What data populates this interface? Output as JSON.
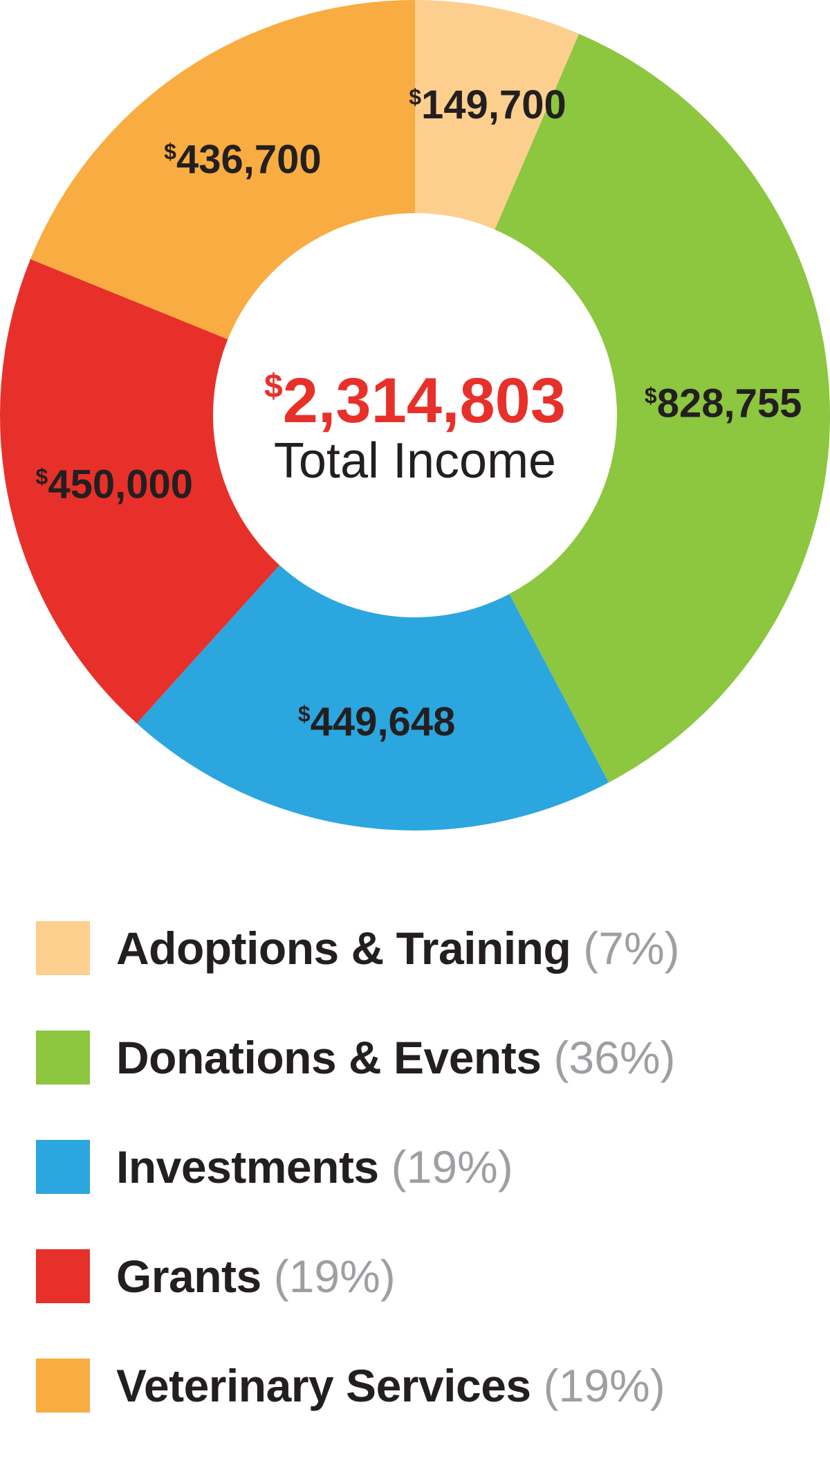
{
  "chart_data": {
    "type": "pie",
    "categories": [
      "Adoptions & Training",
      "Donations & Events",
      "Investments",
      "Grants",
      "Veterinary Services"
    ],
    "values": [
      149700,
      828755,
      449648,
      450000,
      436700
    ],
    "value_labels": [
      "149,700",
      "828,755",
      "449,648",
      "450,000",
      "436,700"
    ],
    "currency_symbol": "$",
    "percent_labels": [
      "(7%)",
      "(36%)",
      "(19%)",
      "(19%)",
      "(19%)"
    ],
    "colors": [
      "#fdcf8f",
      "#8dc63f",
      "#2ca6df",
      "#e8302a",
      "#f9ac41"
    ],
    "donut": true,
    "start": "top",
    "direction": "clockwise",
    "legend_position": "bottom",
    "center": {
      "value": "2,314,803",
      "currency_symbol": "$",
      "caption": "Total Income"
    }
  }
}
